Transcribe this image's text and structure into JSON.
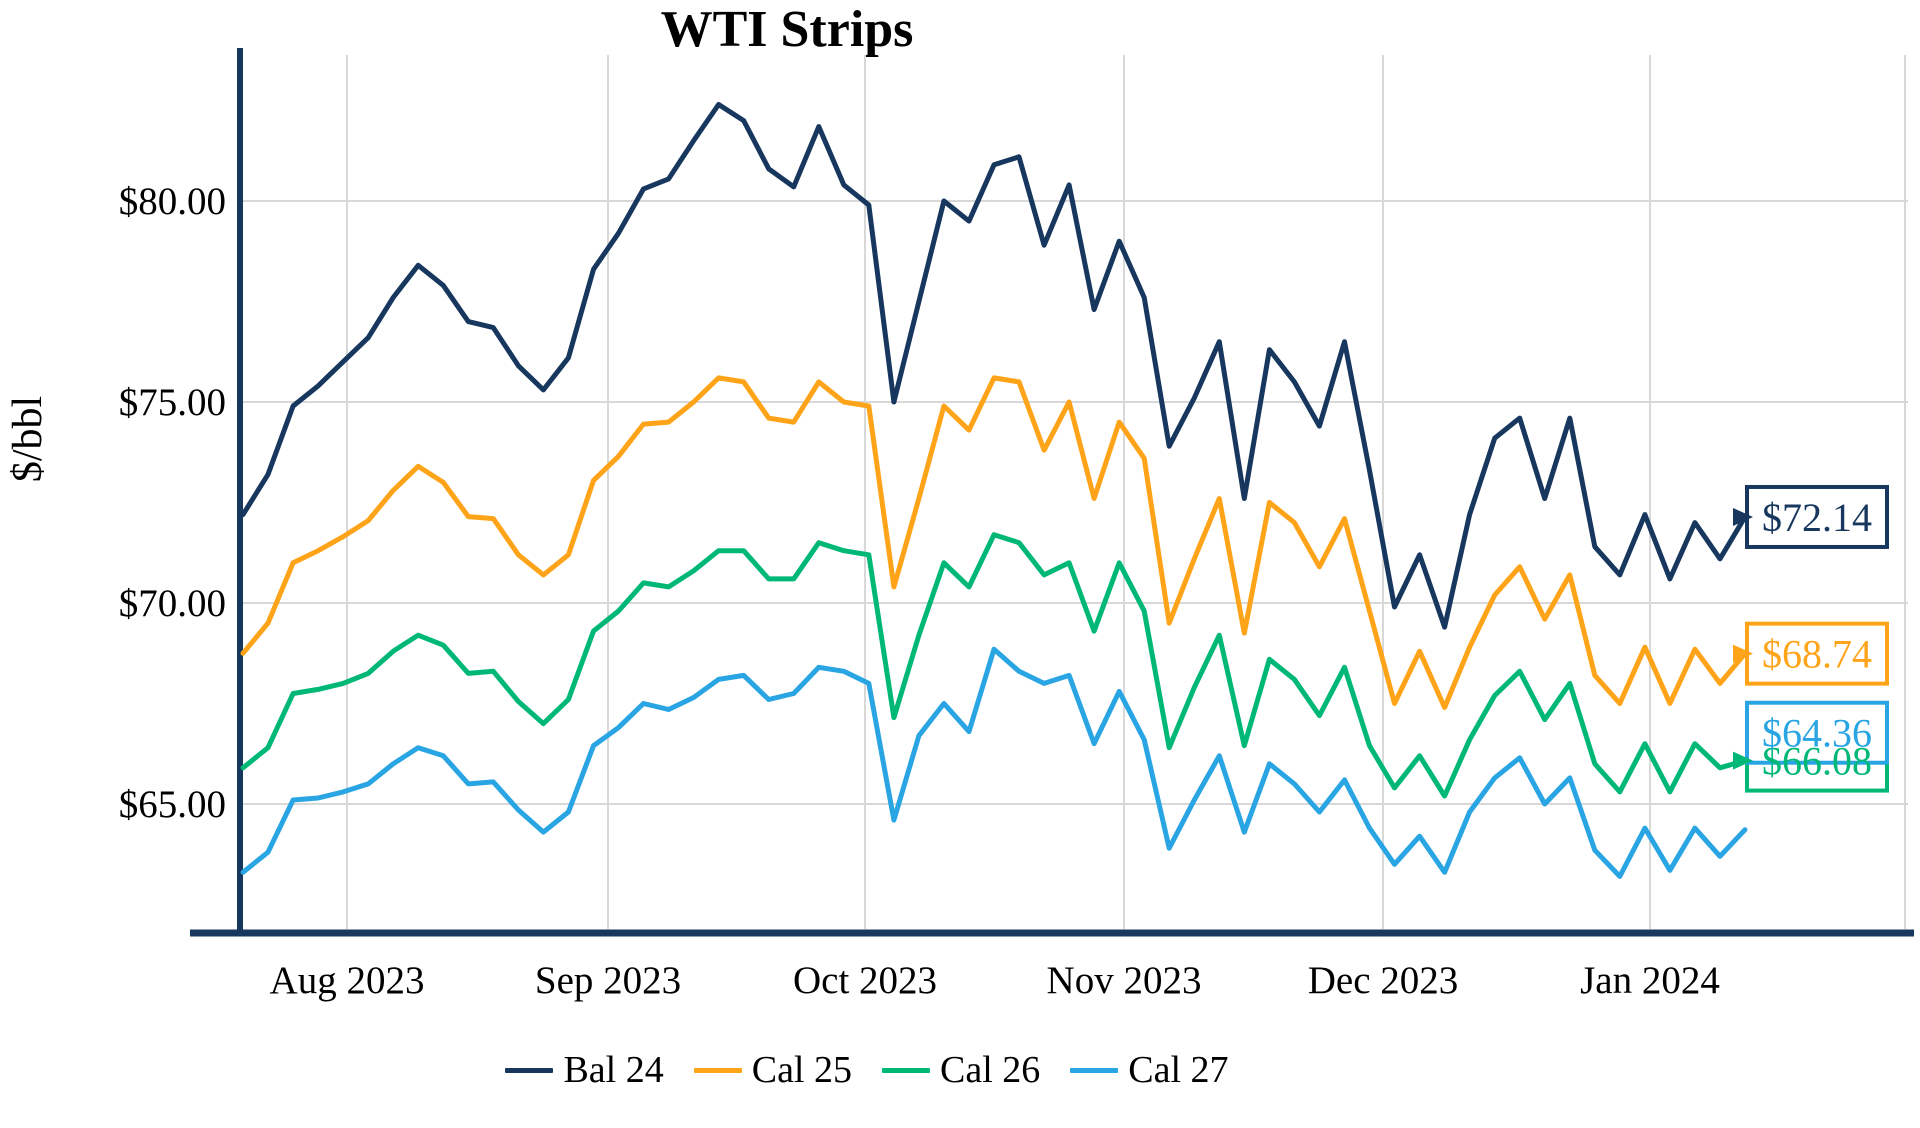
{
  "title": "WTI Strips",
  "y_axis_label": "$/bbl",
  "colors": {
    "navy": "#17375E",
    "orange": "#FFA319",
    "green": "#00B876",
    "blue": "#29A5E3",
    "grid": "#D8D8D8",
    "axis": "#17375E",
    "background": "#FFFFFF",
    "text": "#000000"
  },
  "chart_data": {
    "type": "line",
    "title": "WTI Strips",
    "xlabel": "",
    "ylabel": "$/bbl",
    "x_range": [
      "mid-Jul 2023",
      "mid-Jan 2024"
    ],
    "x_ticklabels": [
      "Aug 2023",
      "Sep 2023",
      "Oct 2023",
      "Nov 2023",
      "Dec 2023",
      "Jan 2024"
    ],
    "y_ticks": [
      65,
      70,
      75,
      80
    ],
    "y_ticklabels": [
      "$65.00",
      "$70.00",
      "$75.00",
      "$80.00"
    ],
    "ylim": [
      62,
      83.6
    ],
    "grid": true,
    "legend_position": "bottom",
    "series": [
      {
        "name": "Bal 24",
        "color": "#17375E",
        "end_label": "$72.14",
        "end_value": 72.14,
        "values": [
          72.2,
          73.2,
          74.9,
          75.4,
          76.0,
          76.6,
          77.6,
          78.4,
          77.9,
          77.0,
          76.85,
          75.9,
          75.3,
          76.1,
          78.3,
          79.2,
          80.3,
          80.55,
          81.5,
          82.4,
          82.0,
          80.8,
          80.35,
          81.85,
          80.4,
          79.9,
          75.0,
          77.5,
          80.0,
          79.5,
          80.9,
          81.1,
          78.9,
          80.4,
          77.3,
          79.0,
          77.6,
          73.9,
          75.1,
          76.5,
          72.6,
          76.3,
          75.5,
          74.4,
          76.5,
          73.3,
          69.9,
          71.2,
          69.4,
          72.2,
          74.1,
          74.6,
          72.6,
          74.6,
          71.4,
          70.7,
          72.2,
          70.6,
          72.0,
          71.1,
          72.14
        ]
      },
      {
        "name": "Cal 25",
        "color": "#FFA319",
        "end_label": "$68.74",
        "end_value": 68.74,
        "values": [
          68.75,
          69.5,
          71.0,
          71.3,
          71.65,
          72.05,
          72.8,
          73.4,
          73.0,
          72.15,
          72.1,
          71.2,
          70.7,
          71.2,
          73.05,
          73.65,
          74.45,
          74.5,
          75.0,
          75.6,
          75.5,
          74.6,
          74.5,
          75.5,
          75.0,
          74.9,
          70.4,
          72.6,
          74.9,
          74.3,
          75.6,
          75.5,
          73.8,
          75.0,
          72.6,
          74.5,
          73.6,
          69.5,
          71.1,
          72.6,
          69.25,
          72.5,
          72.0,
          70.9,
          72.1,
          69.8,
          67.5,
          68.8,
          67.4,
          68.9,
          70.2,
          70.9,
          69.6,
          70.7,
          68.2,
          67.5,
          68.9,
          67.5,
          68.85,
          68.0,
          68.74
        ]
      },
      {
        "name": "Cal 26",
        "color": "#00B876",
        "end_label": "$66.08",
        "end_value": 66.08,
        "values": [
          65.9,
          66.4,
          67.75,
          67.85,
          68.0,
          68.25,
          68.8,
          69.2,
          68.95,
          68.25,
          68.3,
          67.55,
          67.0,
          67.6,
          69.3,
          69.8,
          70.5,
          70.4,
          70.8,
          71.3,
          71.3,
          70.6,
          70.6,
          71.5,
          71.3,
          71.2,
          67.15,
          69.2,
          71.0,
          70.4,
          71.7,
          71.5,
          70.7,
          71.0,
          69.3,
          71.0,
          69.8,
          66.4,
          67.9,
          69.2,
          66.45,
          68.6,
          68.1,
          67.2,
          68.4,
          66.45,
          65.4,
          66.2,
          65.2,
          66.6,
          67.7,
          68.3,
          67.1,
          68.0,
          66.0,
          65.3,
          66.5,
          65.3,
          66.5,
          65.9,
          66.08
        ]
      },
      {
        "name": "Cal 27",
        "color": "#29A5E3",
        "end_label": "$64.36",
        "end_value": 64.36,
        "values": [
          63.3,
          63.8,
          65.1,
          65.15,
          65.3,
          65.5,
          66.0,
          66.4,
          66.2,
          65.5,
          65.55,
          64.85,
          64.3,
          64.8,
          66.45,
          66.9,
          67.5,
          67.35,
          67.65,
          68.1,
          68.2,
          67.6,
          67.75,
          68.4,
          68.3,
          68.0,
          64.6,
          66.7,
          67.5,
          66.8,
          68.85,
          68.3,
          68.0,
          68.2,
          66.5,
          67.8,
          66.6,
          63.9,
          65.1,
          66.2,
          64.3,
          66.0,
          65.5,
          64.8,
          65.6,
          64.4,
          63.5,
          64.2,
          63.3,
          64.8,
          65.65,
          66.15,
          65.0,
          65.65,
          63.85,
          63.2,
          64.4,
          63.35,
          64.4,
          63.7,
          64.36
        ]
      }
    ]
  }
}
